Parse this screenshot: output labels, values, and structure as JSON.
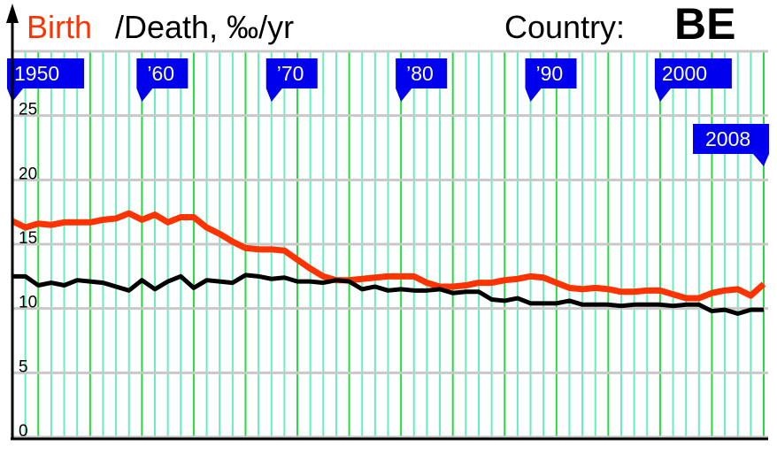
{
  "chart_data": {
    "type": "line",
    "title_birth": "Birth",
    "title_rest": "/Death, ‰/yr",
    "country_label": "Country:",
    "country": "BE",
    "x": [
      1950,
      1951,
      1952,
      1953,
      1954,
      1955,
      1956,
      1957,
      1958,
      1959,
      1960,
      1961,
      1962,
      1963,
      1964,
      1965,
      1966,
      1967,
      1968,
      1969,
      1970,
      1971,
      1972,
      1973,
      1974,
      1975,
      1976,
      1977,
      1978,
      1979,
      1980,
      1981,
      1982,
      1983,
      1984,
      1985,
      1986,
      1987,
      1988,
      1989,
      1990,
      1991,
      1992,
      1993,
      1994,
      1995,
      1996,
      1997,
      1998,
      1999,
      2000,
      2001,
      2002,
      2003,
      2004,
      2005,
      2006,
      2007,
      2008
    ],
    "series": [
      {
        "name": "Birth",
        "color": "#ff3300",
        "values": [
          16.8,
          16.3,
          16.6,
          16.5,
          16.7,
          16.7,
          16.7,
          16.9,
          17.0,
          17.4,
          16.9,
          17.3,
          16.7,
          17.1,
          17.1,
          16.3,
          15.8,
          15.2,
          14.7,
          14.6,
          14.6,
          14.5,
          13.8,
          13.1,
          12.5,
          12.2,
          12.2,
          12.3,
          12.4,
          12.5,
          12.5,
          12.5,
          12.0,
          11.7,
          11.7,
          11.8,
          12.0,
          12.0,
          12.2,
          12.3,
          12.5,
          12.4,
          12.0,
          11.6,
          11.5,
          11.6,
          11.5,
          11.3,
          11.3,
          11.4,
          11.4,
          11.1,
          10.8,
          10.8,
          11.2,
          11.4,
          11.5,
          11.0,
          11.9
        ]
      },
      {
        "name": "Death",
        "color": "#000000",
        "values": [
          12.5,
          12.5,
          11.8,
          12.0,
          11.8,
          12.2,
          12.1,
          12.0,
          11.7,
          11.4,
          12.2,
          11.5,
          12.1,
          12.5,
          11.6,
          12.2,
          12.1,
          12.0,
          12.6,
          12.5,
          12.3,
          12.4,
          12.1,
          12.1,
          12.0,
          12.2,
          12.1,
          11.5,
          11.7,
          11.4,
          11.5,
          11.4,
          11.4,
          11.5,
          11.2,
          11.3,
          11.3,
          10.7,
          10.6,
          10.8,
          10.4,
          10.4,
          10.4,
          10.6,
          10.3,
          10.3,
          10.3,
          10.2,
          10.3,
          10.3,
          10.3,
          10.2,
          10.3,
          10.3,
          9.8,
          9.9,
          9.6,
          9.9,
          9.9
        ]
      }
    ],
    "y_ticks": [
      "0",
      "5",
      "10",
      "15",
      "20",
      "25"
    ],
    "ylim": [
      0,
      30
    ],
    "xlim": [
      1950,
      2008
    ],
    "grid": true,
    "x_flags": [
      {
        "year": 1950,
        "label": "1950"
      },
      {
        "year": 1960,
        "label": "’60"
      },
      {
        "year": 1970,
        "label": "’70"
      },
      {
        "year": 1980,
        "label": "’80"
      },
      {
        "year": 1990,
        "label": "’90"
      },
      {
        "year": 2000,
        "label": "2000"
      },
      {
        "year": 2008,
        "label": "2008"
      }
    ],
    "colors": {
      "flag": "#0000ee",
      "grid_minor": "#66eebb",
      "grid_major": "#22dd44",
      "grid_h": "#c8c8c8"
    }
  }
}
